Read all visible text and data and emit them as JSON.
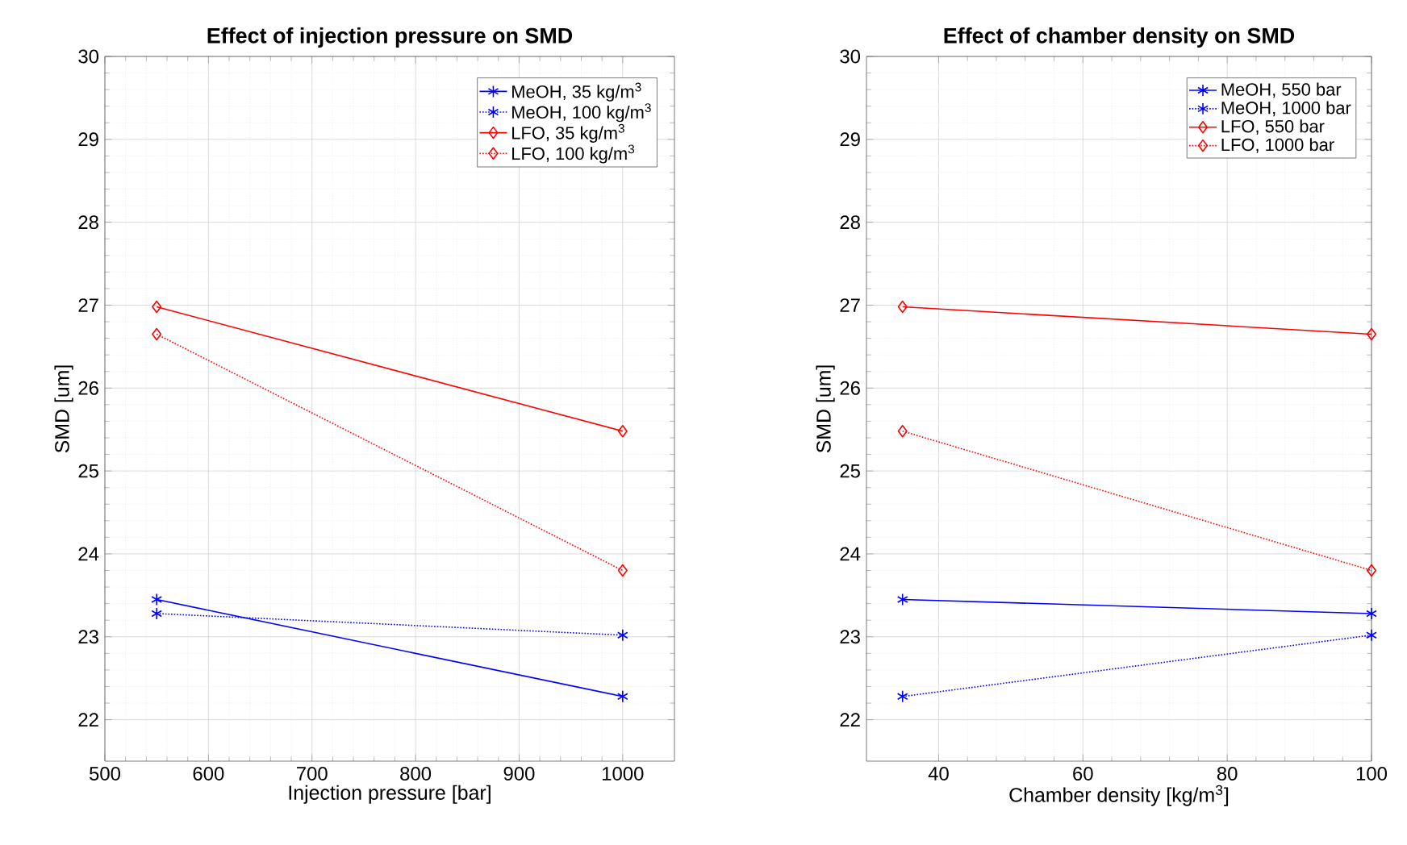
{
  "chart_data": [
    {
      "type": "line",
      "title": "Effect of injection pressure on SMD",
      "xlabel": "Injection pressure [bar]",
      "ylabel": "SMD [um]",
      "xlim": [
        500,
        1050
      ],
      "xticks": [
        500,
        600,
        700,
        800,
        900,
        1000
      ],
      "ylim": [
        21.5,
        30
      ],
      "yticks": [
        22,
        23,
        24,
        25,
        26,
        27,
        28,
        29,
        30
      ],
      "grid": true,
      "legend": "top right",
      "series": [
        {
          "name": "MeOH, 35 kg/m$^{3}$",
          "color": "#0000ff",
          "marker": "cross",
          "line_style": "solid",
          "x": [
            550,
            1000
          ],
          "values": [
            23.45,
            22.28
          ]
        },
        {
          "name": "MeOH, 100 kg/m$^{3}$",
          "color": "#0000ff",
          "marker": "cross",
          "line_style": "dotted",
          "x": [
            550,
            1000
          ],
          "values": [
            23.28,
            23.02
          ]
        },
        {
          "name": "LFO, 35 kg/m$^{3}$",
          "color": "#ff0000",
          "marker": "diamond",
          "line_style": "solid",
          "x": [
            550,
            1000
          ],
          "values": [
            26.98,
            25.48
          ]
        },
        {
          "name": "LFO, 100 kg/m$^{3}$",
          "color": "#ff0000",
          "marker": "diamond",
          "line_style": "dotted",
          "x": [
            550,
            1000
          ],
          "values": [
            26.65,
            23.8
          ]
        }
      ]
    },
    {
      "type": "line",
      "title": "Effect of chamber density on SMD",
      "xlabel": "Chamber density [kg/m$^{3}$]",
      "ylabel": "SMD [um]",
      "xlim": [
        30,
        100
      ],
      "xticks": [
        40,
        60,
        80,
        100
      ],
      "ylim": [
        21.5,
        30
      ],
      "yticks": [
        22,
        23,
        24,
        25,
        26,
        27,
        28,
        29,
        30
      ],
      "grid": true,
      "legend": "top right",
      "series": [
        {
          "name": "MeOH, 550 bar",
          "color": "#0000ff",
          "marker": "cross",
          "line_style": "solid",
          "x": [
            35,
            100
          ],
          "values": [
            23.45,
            23.28
          ]
        },
        {
          "name": "MeOH, 1000 bar",
          "color": "#0000ff",
          "marker": "cross",
          "line_style": "dotted",
          "x": [
            35,
            100
          ],
          "values": [
            22.28,
            23.02
          ]
        },
        {
          "name": "LFO, 550 bar",
          "color": "#ff0000",
          "marker": "diamond",
          "line_style": "solid",
          "x": [
            35,
            100
          ],
          "values": [
            26.98,
            26.65
          ]
        },
        {
          "name": "LFO, 1000 bar",
          "color": "#ff0000",
          "marker": "diamond",
          "line_style": "dotted",
          "x": [
            35,
            100
          ],
          "values": [
            25.48,
            23.8
          ]
        }
      ]
    }
  ]
}
